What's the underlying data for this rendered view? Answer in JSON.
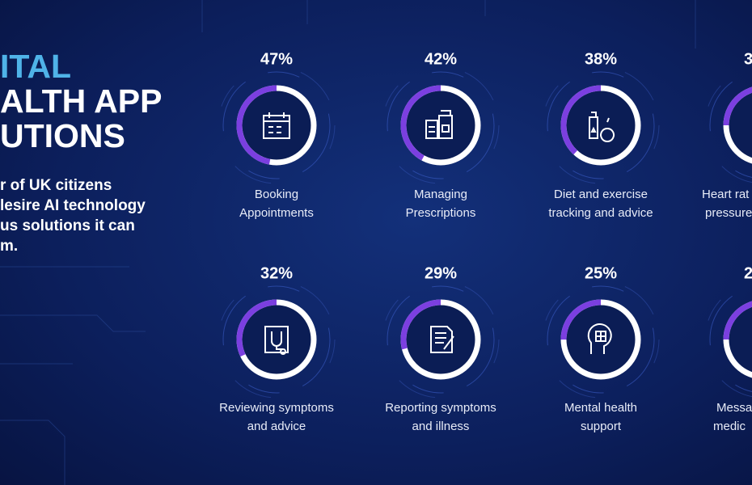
{
  "title_lines": [
    "ITAL",
    "ALTH APP",
    "UTIONS"
  ],
  "subtitle_lines": [
    "r of UK citizens",
    "lesire AI technology",
    "us solutions it can",
    "m."
  ],
  "items": [
    {
      "value": 47,
      "value_label": "47%",
      "label_lines": [
        "Booking",
        "Appointments"
      ]
    },
    {
      "value": 42,
      "value_label": "42%",
      "label_lines": [
        "Managing",
        "Prescriptions"
      ]
    },
    {
      "value": 38,
      "value_label": "38%",
      "label_lines": [
        "Diet and exercise",
        "tracking and advice"
      ]
    },
    {
      "value": 32,
      "value_label": "32%",
      "label_lines": [
        "Reviewing symptoms",
        "and advice"
      ]
    },
    {
      "value": 29,
      "value_label": "29%",
      "label_lines": [
        "Reporting symptoms",
        "and illness"
      ]
    },
    {
      "value": 25,
      "value_label": "25%",
      "label_lines": [
        "Mental health",
        "support"
      ]
    }
  ],
  "partial_items": [
    {
      "value_label": "3",
      "label_lines": [
        "Heart rat",
        "pressure"
      ]
    },
    {
      "value_label": "2",
      "label_lines": [
        "Messa",
        "medic"
      ]
    }
  ]
}
